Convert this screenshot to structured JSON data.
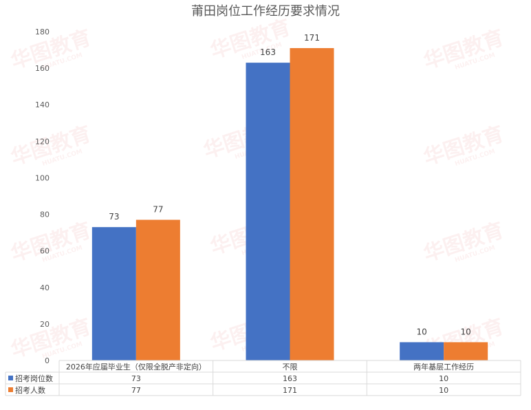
{
  "chart_data": {
    "type": "bar",
    "title": "莆田岗位工作经历要求情况",
    "categories": [
      "2026年应届毕业生（仅限全脱产非定向）",
      "不限",
      "两年基层工作经历"
    ],
    "series": [
      {
        "name": "招考岗位数",
        "values": [
          73,
          163,
          10
        ],
        "color": "#4472c4"
      },
      {
        "name": "招考人数",
        "values": [
          77,
          171,
          10
        ],
        "color": "#ed7d31"
      }
    ],
    "ylim": [
      0,
      180
    ],
    "yticks": [
      0,
      20,
      40,
      60,
      80,
      100,
      120,
      140,
      160,
      180
    ],
    "grid": false,
    "legend": "data-table"
  },
  "watermark": {
    "text": "华图教育",
    "sub": "HUATU.COM"
  }
}
